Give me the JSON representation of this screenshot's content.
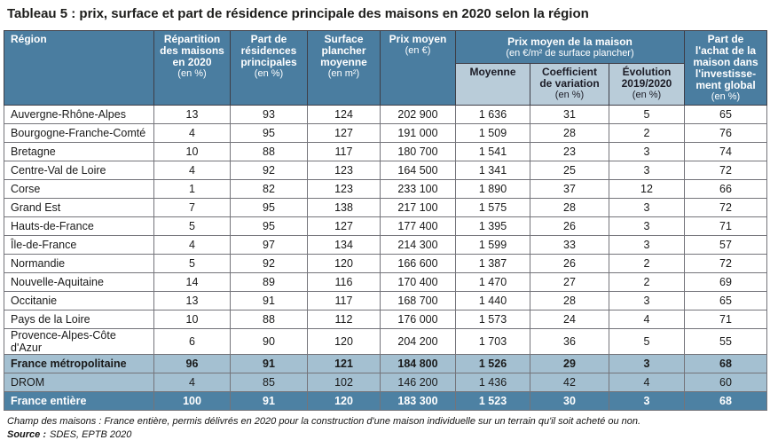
{
  "title": "Tableau 5 : prix, surface et part de résidence principale des maisons en 2020 selon la région",
  "colors": {
    "header_blue": "#4a7da0",
    "subheader_blue": "#b9ccd9",
    "summary_light": "#a4c0d1",
    "summary_dark": "#4d81a3",
    "border_dark": "#3e3e47",
    "border_body": "#74747a",
    "title_color": "#1d1d1b"
  },
  "table": {
    "headers": {
      "region": {
        "title": "Région",
        "unit": ""
      },
      "repartition": {
        "title": "Répartition\ndes maisons\nen 2020",
        "unit": "(en %)"
      },
      "residences": {
        "title": "Part de\nrésidences\nprincipales",
        "unit": "(en %)"
      },
      "surface": {
        "title": "Surface\nplancher\nmoyenne",
        "unit": "(en m²)"
      },
      "prix_moyen": {
        "title": "Prix moyen",
        "unit": "(en €)"
      },
      "prix_maison_group": {
        "title": "Prix moyen de la maison",
        "unit": "(en €/m² de surface plancher)"
      },
      "moyenne": {
        "title": "Moyenne",
        "unit": ""
      },
      "coefficient": {
        "title": "Coefficient\nde variation",
        "unit": "(en %)"
      },
      "evolution": {
        "title": "Évolution\n2019/2020",
        "unit": "(en %)"
      },
      "part_achat": {
        "title": "Part de\nl'achat de la\nmaison dans\nl'investisse-\nment global",
        "unit": "(en %)"
      }
    },
    "rows": [
      {
        "region": "Auvergne-Rhône-Alpes",
        "values": [
          "13",
          "93",
          "124",
          "202 900",
          "1 636",
          "31",
          "5",
          "65"
        ],
        "style": "normal",
        "bold": false
      },
      {
        "region": "Bourgogne-Franche-Comté",
        "values": [
          "4",
          "95",
          "127",
          "191 000",
          "1 509",
          "28",
          "2",
          "76"
        ],
        "style": "normal",
        "bold": false
      },
      {
        "region": "Bretagne",
        "values": [
          "10",
          "88",
          "117",
          "180 700",
          "1 541",
          "23",
          "3",
          "74"
        ],
        "style": "normal",
        "bold": false
      },
      {
        "region": "Centre-Val de Loire",
        "values": [
          "4",
          "92",
          "123",
          "164 500",
          "1 341",
          "25",
          "3",
          "72"
        ],
        "style": "normal",
        "bold": false
      },
      {
        "region": "Corse",
        "values": [
          "1",
          "82",
          "123",
          "233 100",
          "1 890",
          "37",
          "12",
          "66"
        ],
        "style": "normal",
        "bold": false
      },
      {
        "region": "Grand Est",
        "values": [
          "7",
          "95",
          "138",
          "217 100",
          "1 575",
          "28",
          "3",
          "72"
        ],
        "style": "normal",
        "bold": false
      },
      {
        "region": "Hauts-de-France",
        "values": [
          "5",
          "95",
          "127",
          "177 400",
          "1 395",
          "26",
          "3",
          "71"
        ],
        "style": "normal",
        "bold": false
      },
      {
        "region": "Île-de-France",
        "values": [
          "4",
          "97",
          "134",
          "214 300",
          "1 599",
          "33",
          "3",
          "57"
        ],
        "style": "normal",
        "bold": false
      },
      {
        "region": "Normandie",
        "values": [
          "5",
          "92",
          "120",
          "166 600",
          "1 387",
          "26",
          "2",
          "72"
        ],
        "style": "normal",
        "bold": false
      },
      {
        "region": "Nouvelle-Aquitaine",
        "values": [
          "14",
          "89",
          "116",
          "170 400",
          "1 470",
          "27",
          "2",
          "69"
        ],
        "style": "normal",
        "bold": false
      },
      {
        "region": "Occitanie",
        "values": [
          "13",
          "91",
          "117",
          "168 700",
          "1 440",
          "28",
          "3",
          "65"
        ],
        "style": "normal",
        "bold": false
      },
      {
        "region": "Pays de la Loire",
        "values": [
          "10",
          "88",
          "112",
          "176 000",
          "1 573",
          "24",
          "4",
          "71"
        ],
        "style": "normal",
        "bold": false
      },
      {
        "region": "Provence-Alpes-Côte d'Azur",
        "values": [
          "6",
          "90",
          "120",
          "204 200",
          "1 703",
          "36",
          "5",
          "55"
        ],
        "style": "normal",
        "bold": false
      },
      {
        "region": "France métropolitaine",
        "values": [
          "96",
          "91",
          "121",
          "184 800",
          "1 526",
          "29",
          "3",
          "68"
        ],
        "style": "light",
        "bold": true
      },
      {
        "region": "DROM",
        "values": [
          "4",
          "85",
          "102",
          "146 200",
          "1 436",
          "42",
          "4",
          "60"
        ],
        "style": "light",
        "bold": false
      },
      {
        "region": "France entière",
        "values": [
          "100",
          "91",
          "120",
          "183 300",
          "1 523",
          "30",
          "3",
          "68"
        ],
        "style": "dark",
        "bold": true
      }
    ]
  },
  "notes": {
    "champ": "Champ des maisons : France entière, permis délivrés en 2020 pour la construction d'une maison individuelle sur un terrain qu'il soit acheté ou non.",
    "source_label": "Source :",
    "source_value": "SDES, EPTB 2020"
  }
}
